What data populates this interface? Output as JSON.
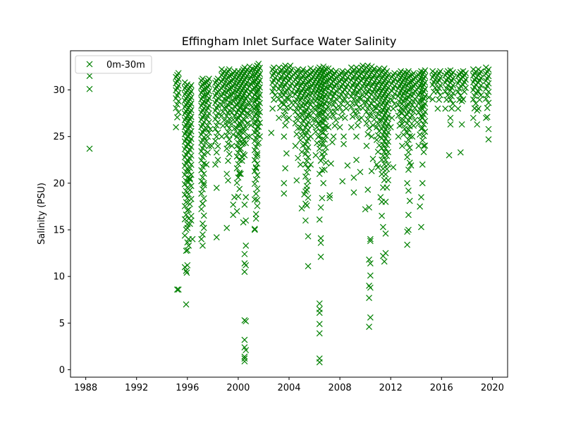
{
  "chart_data": {
    "type": "scatter",
    "title": "Effingham Inlet Surface Water Salinity",
    "xlabel": "",
    "ylabel": "Salinity (PSU)",
    "xlim": [
      1986.8,
      2021.2
    ],
    "ylim": [
      -0.8,
      34.2
    ],
    "xticks": [
      1988,
      1992,
      1996,
      2000,
      2004,
      2008,
      2012,
      2016,
      2020
    ],
    "yticks": [
      0,
      5,
      10,
      15,
      20,
      25,
      30
    ],
    "grid": false,
    "legend": "upper-left",
    "marker": "x",
    "color": "#008000",
    "series": [
      {
        "name": "0m-30m",
        "clusters": [
          [
            1995.2,
            26,
            31.8
          ],
          [
            1995.9,
            11,
            30.8
          ],
          [
            1996.2,
            14,
            30.5
          ],
          [
            1997.2,
            14,
            31.2
          ],
          [
            1997.6,
            22,
            31.2
          ],
          [
            1998.3,
            22,
            31.2
          ],
          [
            1998.8,
            25,
            32.2
          ],
          [
            1999.2,
            21,
            32.2
          ],
          [
            1999.6,
            24,
            32.0
          ],
          [
            2000.0,
            17,
            32.0
          ],
          [
            2000.3,
            21,
            32.2
          ],
          [
            2000.6,
            23,
            32.4
          ],
          [
            2001.0,
            25,
            32.5
          ],
          [
            2001.4,
            15,
            32.6
          ],
          [
            2001.6,
            23,
            32.8
          ],
          [
            2002.8,
            28,
            32.4
          ],
          [
            2003.3,
            27,
            32.4
          ],
          [
            2003.7,
            25,
            32.6
          ],
          [
            2004.1,
            27,
            32.6
          ],
          [
            2004.6,
            24,
            32.2
          ],
          [
            2005.0,
            22,
            32.2
          ],
          [
            2005.4,
            16,
            32.0
          ],
          [
            2005.8,
            25,
            32.3
          ],
          [
            2006.2,
            23,
            32.2
          ],
          [
            2006.5,
            21,
            32.4
          ],
          [
            2006.8,
            20,
            32.5
          ],
          [
            2007.2,
            26,
            32.3
          ],
          [
            2007.6,
            25,
            32.0
          ],
          [
            2008.1,
            26,
            32.0
          ],
          [
            2008.5,
            27,
            32.0
          ],
          [
            2009.0,
            26,
            32.4
          ],
          [
            2009.4,
            25,
            32.4
          ],
          [
            2009.8,
            27,
            32.6
          ],
          [
            2010.2,
            24,
            32.6
          ],
          [
            2010.6,
            25,
            32.5
          ],
          [
            2011.0,
            22,
            32.3
          ],
          [
            2011.4,
            18,
            32.3
          ],
          [
            2011.7,
            18,
            32.0
          ],
          [
            2012.2,
            27,
            31.8
          ],
          [
            2012.7,
            25,
            32.0
          ],
          [
            2013.0,
            24,
            31.9
          ],
          [
            2013.4,
            20,
            32.0
          ],
          [
            2013.8,
            25,
            31.8
          ],
          [
            2014.3,
            24,
            32.0
          ],
          [
            2014.6,
            22,
            32.1
          ],
          [
            2015.4,
            29,
            32.0
          ],
          [
            2015.8,
            28,
            32.0
          ],
          [
            2016.4,
            28,
            32.0
          ],
          [
            2016.8,
            27,
            32.1
          ],
          [
            2017.4,
            28,
            31.9
          ],
          [
            2017.8,
            29,
            32.0
          ],
          [
            2018.6,
            27,
            32.2
          ],
          [
            2019.0,
            28,
            32.2
          ],
          [
            2019.6,
            27,
            32.4
          ]
        ],
        "points": [
          [
            1988.3,
            31.5
          ],
          [
            1988.3,
            30.1
          ],
          [
            1988.3,
            23.7
          ],
          [
            1995.2,
            8.6
          ],
          [
            1995.3,
            8.6
          ],
          [
            1995.9,
            7.0
          ],
          [
            1995.95,
            10.4
          ],
          [
            1995.9,
            10.6
          ],
          [
            1996.0,
            11.2
          ],
          [
            1996.0,
            12.8
          ],
          [
            1996.1,
            13.3
          ],
          [
            1996.0,
            15.2
          ],
          [
            1996.1,
            16.2
          ],
          [
            1996.2,
            20.4
          ],
          [
            1996.3,
            16.0
          ],
          [
            1996.4,
            14.0
          ],
          [
            1997.2,
            13.3
          ],
          [
            1997.2,
            14.5
          ],
          [
            1997.3,
            15.2
          ],
          [
            1997.2,
            17.8
          ],
          [
            1997.3,
            20.0
          ],
          [
            1997.9,
            24.0
          ],
          [
            1997.8,
            25.8
          ],
          [
            1998.3,
            14.2
          ],
          [
            1998.3,
            19.5
          ],
          [
            1998.4,
            22.5
          ],
          [
            1999.1,
            15.2
          ],
          [
            1999.2,
            20.3
          ],
          [
            1999.6,
            16.6
          ],
          [
            1999.6,
            17.7
          ],
          [
            1999.7,
            18.5
          ],
          [
            2000.1,
            21.0
          ],
          [
            2000.3,
            22.8
          ],
          [
            2000.4,
            24.3
          ],
          [
            2000.5,
            0.9
          ],
          [
            2000.5,
            1.2
          ],
          [
            2000.5,
            1.4
          ],
          [
            2000.6,
            2.1
          ],
          [
            2000.5,
            2.4
          ],
          [
            2000.5,
            3.2
          ],
          [
            2000.5,
            5.3
          ],
          [
            2000.6,
            5.2
          ],
          [
            2000.5,
            10.5
          ],
          [
            2000.6,
            11.2
          ],
          [
            2000.5,
            11.4
          ],
          [
            2000.5,
            12.4
          ],
          [
            2000.6,
            13.3
          ],
          [
            2000.4,
            15.8
          ],
          [
            2000.6,
            16.0
          ],
          [
            2000.5,
            17.7
          ],
          [
            2000.6,
            18.5
          ],
          [
            2001.3,
            15.1
          ],
          [
            2001.4,
            16.2
          ],
          [
            2001.5,
            18.2
          ],
          [
            2001.4,
            21.6
          ],
          [
            2002.6,
            25.4
          ],
          [
            2003.6,
            18.9
          ],
          [
            2003.6,
            20.0
          ],
          [
            2003.7,
            21.6
          ],
          [
            2003.8,
            23.2
          ],
          [
            2004.6,
            20.3
          ],
          [
            2004.7,
            22.7
          ],
          [
            2005.0,
            17.3
          ],
          [
            2005.2,
            18.8
          ],
          [
            2005.3,
            17.8
          ],
          [
            2005.4,
            19.3
          ],
          [
            2005.5,
            14.3
          ],
          [
            2005.5,
            11.1
          ],
          [
            2005.7,
            22.0
          ],
          [
            2006.4,
            0.8
          ],
          [
            2006.4,
            1.2
          ],
          [
            2006.4,
            3.9
          ],
          [
            2006.4,
            4.9
          ],
          [
            2006.4,
            6.1
          ],
          [
            2006.4,
            6.5
          ],
          [
            2006.4,
            7.1
          ],
          [
            2006.5,
            12.1
          ],
          [
            2006.5,
            13.6
          ],
          [
            2006.5,
            14.1
          ],
          [
            2006.4,
            16.1
          ],
          [
            2006.5,
            17.4
          ],
          [
            2006.6,
            18.4
          ],
          [
            2006.6,
            21.4
          ],
          [
            2007.2,
            18.4
          ],
          [
            2007.2,
            18.7
          ],
          [
            2007.3,
            22.1
          ],
          [
            2007.4,
            24.4
          ],
          [
            2008.2,
            20.2
          ],
          [
            2008.3,
            24.2
          ],
          [
            2008.3,
            25.0
          ],
          [
            2008.6,
            21.9
          ],
          [
            2009.1,
            19.0
          ],
          [
            2009.1,
            20.6
          ],
          [
            2009.3,
            22.5
          ],
          [
            2009.6,
            21.2
          ],
          [
            2010.0,
            17.2
          ],
          [
            2010.2,
            19.3
          ],
          [
            2010.3,
            4.6
          ],
          [
            2010.4,
            5.6
          ],
          [
            2010.3,
            7.7
          ],
          [
            2010.4,
            8.8
          ],
          [
            2010.3,
            9.0
          ],
          [
            2010.4,
            10.1
          ],
          [
            2010.4,
            11.4
          ],
          [
            2010.3,
            11.8
          ],
          [
            2010.4,
            13.8
          ],
          [
            2010.4,
            14.0
          ],
          [
            2010.3,
            17.4
          ],
          [
            2010.5,
            21.3
          ],
          [
            2010.6,
            22.6
          ],
          [
            2011.0,
            21.7
          ],
          [
            2011.2,
            18.5
          ],
          [
            2011.3,
            16.5
          ],
          [
            2011.4,
            15.3
          ],
          [
            2011.4,
            12.2
          ],
          [
            2011.5,
            11.6
          ],
          [
            2011.6,
            12.5
          ],
          [
            2011.6,
            14.6
          ],
          [
            2012.0,
            26.0
          ],
          [
            2012.2,
            21.7
          ],
          [
            2013.3,
            13.4
          ],
          [
            2013.3,
            14.8
          ],
          [
            2013.4,
            15.0
          ],
          [
            2013.4,
            16.6
          ],
          [
            2013.5,
            18.1
          ],
          [
            2013.4,
            19.2
          ],
          [
            2013.6,
            21.9
          ],
          [
            2014.3,
            17.5
          ],
          [
            2014.4,
            15.3
          ],
          [
            2014.4,
            18.5
          ],
          [
            2014.5,
            20.0
          ],
          [
            2014.6,
            24.0
          ],
          [
            2015.0,
            29.2
          ],
          [
            2016.6,
            23.0
          ],
          [
            2016.7,
            26.3
          ],
          [
            2017.5,
            23.3
          ],
          [
            2017.6,
            26.3
          ],
          [
            2017.6,
            28.8
          ],
          [
            2018.8,
            26.3
          ],
          [
            2018.8,
            27.8
          ],
          [
            2019.7,
            24.7
          ],
          [
            2019.7,
            25.8
          ],
          [
            2019.6,
            27.1
          ]
        ]
      }
    ]
  }
}
